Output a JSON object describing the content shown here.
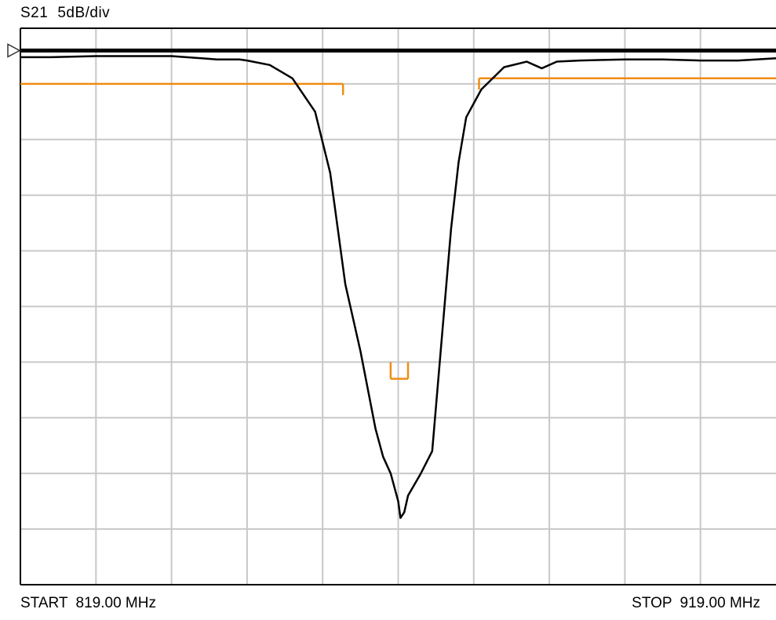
{
  "header": {
    "parameter": "S21",
    "scale": "5dB/div"
  },
  "footer": {
    "start_label": "START",
    "start_value": "819.00 MHz",
    "stop_label": "STOP",
    "stop_value": "919.00 MHz"
  },
  "colors": {
    "grid": "#c8c8c8",
    "frame": "#000000",
    "trace": "#000000",
    "reference_line": "#000000",
    "limit_lines": "#f08c14",
    "background": "#ffffff"
  },
  "chart_data": {
    "type": "line",
    "title": "",
    "xlabel": "",
    "ylabel": "",
    "x_unit": "MHz",
    "y_unit": "dB",
    "xlim": [
      819,
      919
    ],
    "ylim": [
      -48,
      2
    ],
    "grid": true,
    "grid_divisions": {
      "x": 10,
      "y": 10
    },
    "reference_level": 0,
    "series": [
      {
        "x": [
          819,
          823,
          829,
          839,
          845,
          848,
          849,
          852,
          855,
          858,
          860,
          861,
          862,
          864,
          866,
          867,
          868,
          869,
          869.3,
          869.8,
          870.3,
          872,
          873.5,
          875,
          876,
          877,
          878,
          880,
          883,
          886,
          888,
          890,
          893,
          899,
          904,
          909,
          914,
          919
        ],
        "y": [
          -0.6,
          -0.6,
          -0.5,
          -0.5,
          -0.8,
          -0.8,
          -0.9,
          -1.3,
          -2.5,
          -5.5,
          -11,
          -16,
          -21,
          -27,
          -34,
          -36.5,
          -38,
          -40.5,
          -42,
          -41.5,
          -40,
          -38,
          -36,
          -24,
          -16,
          -10,
          -6,
          -3.5,
          -1.5,
          -1.0,
          -1.6,
          -1.0,
          -0.9,
          -0.8,
          -0.8,
          -0.9,
          -0.9,
          -0.7
        ]
      }
    ],
    "limit_lines": [
      {
        "x": [
          819,
          861.7
        ],
        "y": [
          -3.0,
          -3.0
        ]
      },
      {
        "x": [
          861.7,
          861.7
        ],
        "y": [
          -3.0,
          -4.0
        ]
      },
      {
        "x": [
          868,
          870.3
        ],
        "y": [
          -29.5,
          -29.5
        ]
      },
      {
        "x": [
          868,
          868
        ],
        "y": [
          -29.5,
          -28.0
        ]
      },
      {
        "x": [
          870.3,
          870.3
        ],
        "y": [
          -29.5,
          -28.0
        ]
      },
      {
        "x": [
          879.7,
          919
        ],
        "y": [
          -2.5,
          -2.5
        ]
      },
      {
        "x": [
          879.7,
          879.7
        ],
        "y": [
          -2.5,
          -3.5
        ]
      }
    ]
  }
}
